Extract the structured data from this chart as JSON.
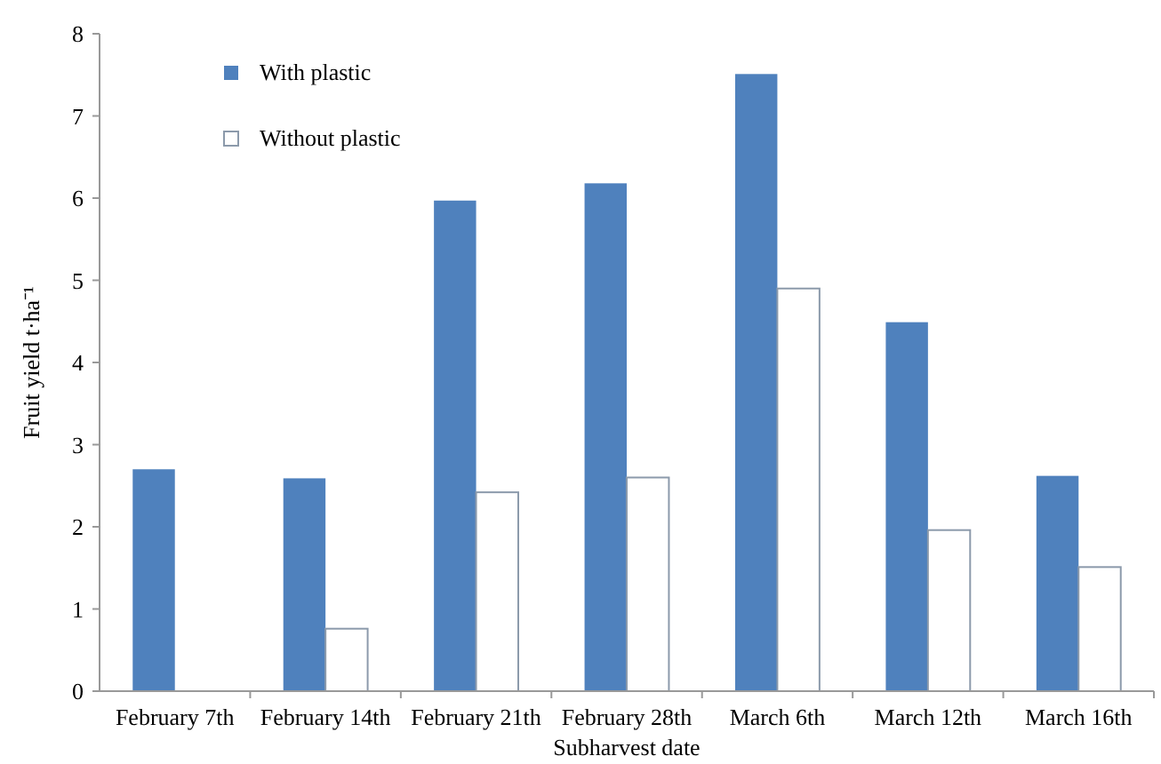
{
  "chart_data": {
    "type": "bar",
    "xlabel": "Subharvest date",
    "ylabel": "Fruit yield t·ha⁻¹",
    "categories": [
      "February 7th",
      "February 14th",
      "February 21th",
      "February 28th",
      "March 6th",
      "March 12th",
      "March 16th"
    ],
    "series": [
      {
        "name": "With plastic",
        "color": "#4f81bd",
        "values": [
          2.7,
          2.59,
          5.97,
          6.18,
          7.51,
          4.49,
          2.62
        ]
      },
      {
        "name": "Without plastic",
        "color": "#ffffff",
        "values": [
          null,
          0.76,
          2.42,
          2.6,
          4.9,
          1.96,
          1.51
        ]
      }
    ],
    "ylim": [
      0,
      8
    ],
    "yticks": [
      0,
      1,
      2,
      3,
      4,
      5,
      6,
      7,
      8
    ],
    "grid": false,
    "legend": "top left"
  }
}
